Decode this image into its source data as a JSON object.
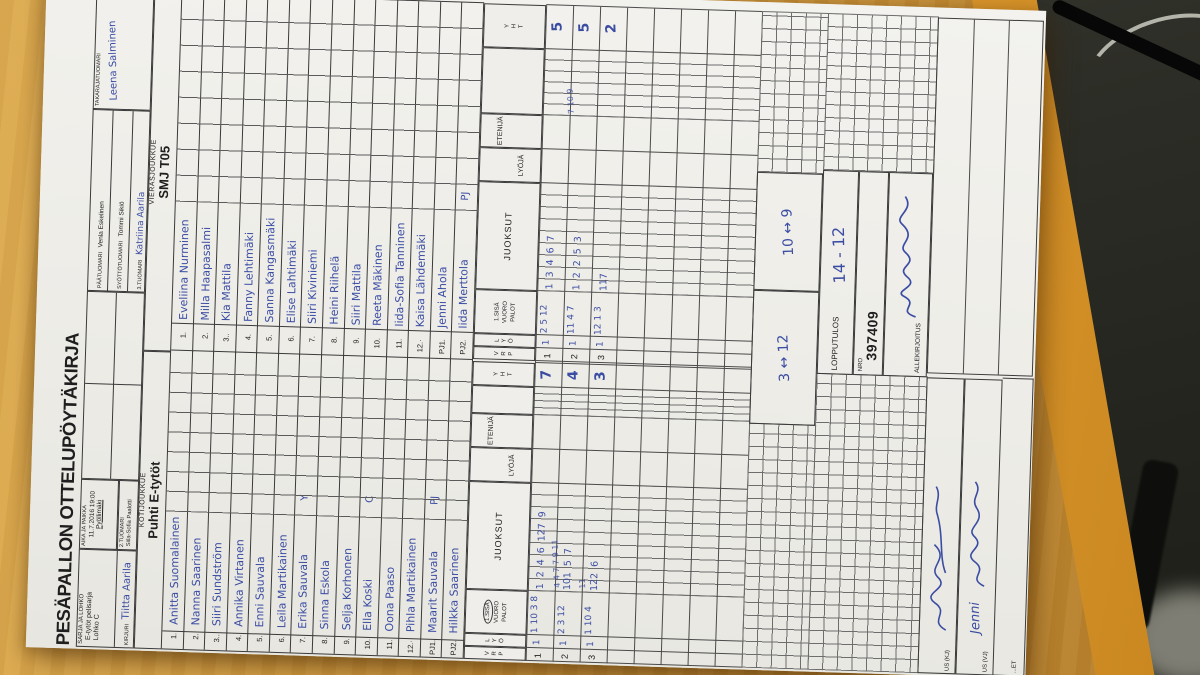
{
  "photo": {
    "colors": {
      "table_wood": "#d09a3e",
      "table_edge_orange": "#e09a31",
      "floor_dark": "#2c2d26",
      "paper": "#efeeea",
      "handwriting_blue": "#3b4da3",
      "print_ink": "#1e1e1e"
    }
  },
  "form": {
    "title": "PESÄPALLON OTTELUPÖYTÄKIRJA",
    "header": {
      "sarja_label": "SARJA JA LOHKO",
      "sarja_line1": "E-tytöt pelisarja",
      "sarja_line2": "Lohko C",
      "kirjuri_label": "KIRJURI",
      "kirjuri_value": "Tiitta Aarila",
      "aika_label": "AIKA JA PAIKKA",
      "aika_line1": "11.7.2016 19:00",
      "aika_line2": "Pyöllimäki",
      "tuomari2_label": "2.TUOMARI",
      "tuomari2_value": "Siila-Sofia Paalotti",
      "paatuomari_label": "PÄÄTUOMARI",
      "paatuomari_value": "Venla Eskelinen",
      "syotto_label": "SYÖTTÖTUOMARI",
      "syotto_value": "Tommi Sikiö",
      "tuomari3_label": "3.TUOMARI",
      "tuomari3_value": "Katriina Aarila",
      "takaraja_label": "TAKARAJATUOMARI",
      "takaraja_value": "Leena Salminen"
    },
    "home": {
      "team_label": "KOTIJOUKKUE",
      "team_name": "Puhti E-tytöt",
      "players": [
        {
          "no": "1.",
          "name": "Anitta Suomalainen",
          "mark": ""
        },
        {
          "no": "2.",
          "name": "Nanna Saarinen",
          "mark": ""
        },
        {
          "no": "3..",
          "name": "Siiri Sundström",
          "mark": ""
        },
        {
          "no": "4.",
          "name": "Annika Virtanen",
          "mark": ""
        },
        {
          "no": "5.",
          "name": "Enni Sauvala",
          "mark": ""
        },
        {
          "no": "6.",
          "name": "Leila Martikainen",
          "mark": ""
        },
        {
          "no": "7.",
          "name": "Erika Sauvala",
          "mark": "Y"
        },
        {
          "no": "8.",
          "name": "Sinna Eskola",
          "mark": ""
        },
        {
          "no": "9.",
          "name": "Selja Korhonen",
          "mark": ""
        },
        {
          "no": "10.",
          "name": "Ella Koski",
          "mark": "C"
        },
        {
          "no": "11.",
          "name": "Oona Paaso",
          "mark": ""
        },
        {
          "no": "12.·",
          "name": "Pihla Martikainen",
          "mark": ""
        },
        {
          "no": "PJ1.",
          "name": "Maarit Sauvala",
          "mark": "PJ"
        },
        {
          "no": "PJ2.",
          "name": "Hilkka Saarinen",
          "mark": ""
        }
      ]
    },
    "visitor": {
      "team_label": "VIERASJOUKKUE",
      "team_name": "SMJ T05",
      "players": [
        {
          "no": "1.",
          "name": "Eveliina Nurminen",
          "mark": ""
        },
        {
          "no": "2.",
          "name": "Milla Haapasalmi",
          "mark": ""
        },
        {
          "no": "3..",
          "name": "Kia Mattila",
          "mark": ""
        },
        {
          "no": "4.",
          "name": "Fanny Lehtimäki",
          "mark": ""
        },
        {
          "no": "5.",
          "name": "Sanna Kangasmäki",
          "mark": ""
        },
        {
          "no": "6.",
          "name": "Elise Lahtimäki",
          "mark": ""
        },
        {
          "no": "7.",
          "name": "Siiri Kiviniemi",
          "mark": ""
        },
        {
          "no": "8.",
          "name": "Heini Riihelä",
          "mark": ""
        },
        {
          "no": "9.",
          "name": "Siiri Mattila",
          "mark": ""
        },
        {
          "no": "10.",
          "name": "Reeta Mäkinen",
          "mark": ""
        },
        {
          "no": "11.",
          "name": "Iida-Sofia Tanninen",
          "mark": ""
        },
        {
          "no": "12.·",
          "name": "Kaisa Lähdemäki",
          "mark": ""
        },
        {
          "no": "PJ1.",
          "name": "Jenni Ahola",
          "mark": ""
        },
        {
          "no": "PJ2.",
          "name": "Iida Merttola",
          "mark": "PJ"
        }
      ]
    },
    "grid": {
      "yht": [
        "Y",
        "H",
        "T"
      ],
      "vrp": [
        "V",
        "R",
        "P"
      ],
      "lyo": [
        "L",
        "Y",
        "Ö"
      ],
      "sisa": [
        "1.SISÄ",
        "VUORO",
        "PALOT"
      ],
      "juoksut_label": "JUOKSUT",
      "lyoja_label": "LYÖJÄ",
      "etenija_label": "ETENIJÄ",
      "home_rows": [
        {
          "v": "1",
          "l": "1",
          "sisa": "1 10 3 8",
          "juoksut": [
            "1",
            "2",
            "4",
            "6",
            "12",
            "7",
            "9"
          ],
          "yht": "7",
          "extra": ""
        },
        {
          "v": "2",
          "l": "1",
          "sisa": "2 3 12",
          "juoksut": [
            "10",
            "1",
            "5",
            "7"
          ],
          "yht": "4",
          "extra": "4 4 7 7 9 11"
        },
        {
          "v": "3",
          "l": "1",
          "sisa": "1 10 4",
          "juoksut": [
            "12",
            "2",
            "6"
          ],
          "yht": "3",
          "extra": "11"
        }
      ],
      "visitor_rows": [
        {
          "v": "1",
          "l": "1",
          "sisa": "2 5 12",
          "juoksut": [
            "1",
            "3",
            "4",
            "6",
            "7"
          ],
          "yht": "5",
          "extra": ""
        },
        {
          "v": "2",
          "l": "1",
          "sisa": "11 4 7",
          "juoksut": [
            "1",
            "2",
            "2",
            "5",
            "3"
          ],
          "yht": "5",
          "extra": "7 10 9"
        },
        {
          "v": "3",
          "l": "1",
          "sisa": "12 1 3",
          "juoksut": [
            "11",
            "7"
          ],
          "yht": "2",
          "extra": ""
        }
      ],
      "home_subtotal": "3 ↔ 12",
      "visitor_subtotal": "10 ↔ 9"
    },
    "footer": {
      "lopputulos_label": "LOPPUTULOS",
      "lopputulos_value": "14 - 12",
      "nro_label": "NRO",
      "nro_value": "397409",
      "allekirjoitus_label": "ALLEKIRJOITUS",
      "us_kj_label": "US (KJ)",
      "us_vj_label": "US (VJ)",
      "et_label": "...ET",
      "us_vj_sig_text": "Jenni"
    }
  }
}
